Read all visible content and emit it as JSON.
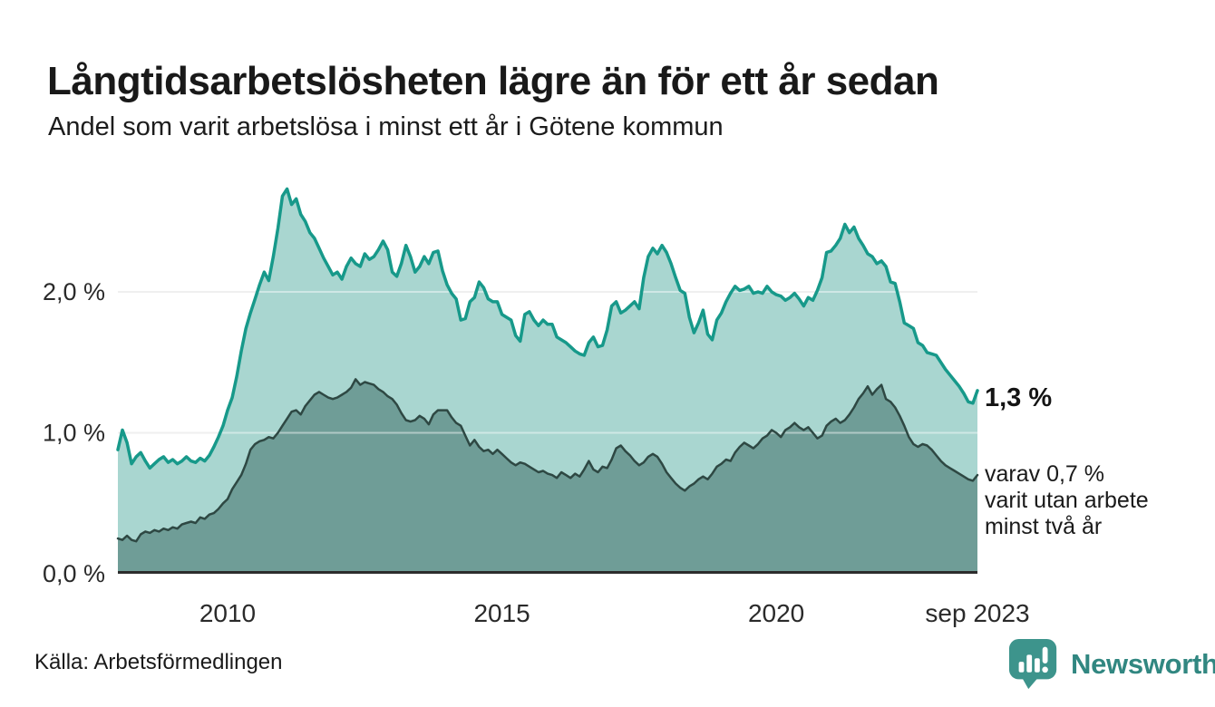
{
  "header": {
    "title": "Långtidsarbetslösheten lägre än för ett år sedan",
    "subtitle": "Andel som varit arbetslösa i minst ett år i Götene kommun"
  },
  "chart_data": {
    "type": "area",
    "title": "Långtidsarbetslösheten lägre än för ett år sedan",
    "subtitle": "Andel som varit arbetslösa i minst ett år i Götene kommun",
    "unit": "%",
    "frequency": "monthly",
    "x_start": "jan 2008",
    "x_end": "sep 2023",
    "ylim": [
      0,
      2.9
    ],
    "grid": true,
    "legend_position": "end-of-line-labels",
    "y_ticks": [
      {
        "value": 0,
        "label": "0,0 %"
      },
      {
        "value": 1,
        "label": "1,0 %"
      },
      {
        "value": 2,
        "label": "2,0 %"
      }
    ],
    "x_ticks": [
      {
        "month_index": 24,
        "label": "2010"
      },
      {
        "month_index": 84,
        "label": "2015"
      },
      {
        "month_index": 144,
        "label": "2020"
      },
      {
        "month_index": 188,
        "label": "sep 2023"
      }
    ],
    "series": [
      {
        "name": "Andel arbetslösa minst ett år",
        "line_color": "#17998a",
        "fill_color": "#a9d6d0",
        "line_width": 3.5,
        "end_value": 1.3,
        "values": [
          0.88,
          1.02,
          0.93,
          0.78,
          0.83,
          0.86,
          0.8,
          0.75,
          0.78,
          0.81,
          0.83,
          0.79,
          0.81,
          0.78,
          0.8,
          0.83,
          0.8,
          0.79,
          0.82,
          0.8,
          0.84,
          0.9,
          0.97,
          1.05,
          1.16,
          1.25,
          1.4,
          1.58,
          1.74,
          1.85,
          1.95,
          2.05,
          2.14,
          2.08,
          2.25,
          2.45,
          2.68,
          2.73,
          2.62,
          2.66,
          2.55,
          2.5,
          2.42,
          2.38,
          2.31,
          2.24,
          2.18,
          2.12,
          2.14,
          2.09,
          2.18,
          2.24,
          2.2,
          2.18,
          2.27,
          2.23,
          2.25,
          2.3,
          2.36,
          2.3,
          2.14,
          2.11,
          2.2,
          2.33,
          2.25,
          2.14,
          2.18,
          2.25,
          2.2,
          2.28,
          2.29,
          2.15,
          2.05,
          1.99,
          1.95,
          1.8,
          1.81,
          1.93,
          1.96,
          2.07,
          2.03,
          1.95,
          1.93,
          1.93,
          1.84,
          1.82,
          1.8,
          1.69,
          1.65,
          1.84,
          1.86,
          1.8,
          1.76,
          1.8,
          1.77,
          1.77,
          1.68,
          1.66,
          1.64,
          1.61,
          1.58,
          1.56,
          1.55,
          1.64,
          1.68,
          1.61,
          1.62,
          1.73,
          1.9,
          1.93,
          1.85,
          1.87,
          1.9,
          1.93,
          1.88,
          2.1,
          2.25,
          2.31,
          2.27,
          2.33,
          2.28,
          2.2,
          2.1,
          2.01,
          1.99,
          1.82,
          1.71,
          1.78,
          1.87,
          1.7,
          1.66,
          1.8,
          1.85,
          1.93,
          1.99,
          2.04,
          2.01,
          2.02,
          2.04,
          1.99,
          2.0,
          1.99,
          2.04,
          2.0,
          1.98,
          1.97,
          1.94,
          1.96,
          1.99,
          1.95,
          1.9,
          1.96,
          1.94,
          2.01,
          2.1,
          2.28,
          2.29,
          2.33,
          2.38,
          2.48,
          2.42,
          2.46,
          2.38,
          2.33,
          2.27,
          2.25,
          2.2,
          2.22,
          2.18,
          2.07,
          2.06,
          1.93,
          1.78,
          1.76,
          1.74,
          1.64,
          1.62,
          1.57,
          1.56,
          1.55,
          1.5,
          1.45,
          1.41,
          1.37,
          1.33,
          1.28,
          1.22,
          1.21,
          1.3
        ]
      },
      {
        "name": "Andel arbetslösa minst två år",
        "line_color": "#2e4843",
        "fill_color": "#6f9d97",
        "line_width": 2.5,
        "end_value": 0.7,
        "values": [
          0.25,
          0.24,
          0.27,
          0.24,
          0.23,
          0.28,
          0.3,
          0.29,
          0.31,
          0.3,
          0.32,
          0.31,
          0.33,
          0.32,
          0.35,
          0.36,
          0.37,
          0.36,
          0.4,
          0.39,
          0.42,
          0.43,
          0.46,
          0.5,
          0.53,
          0.6,
          0.65,
          0.7,
          0.78,
          0.88,
          0.92,
          0.94,
          0.95,
          0.97,
          0.96,
          1.0,
          1.05,
          1.1,
          1.15,
          1.16,
          1.13,
          1.19,
          1.23,
          1.27,
          1.29,
          1.27,
          1.25,
          1.24,
          1.25,
          1.27,
          1.29,
          1.32,
          1.38,
          1.34,
          1.36,
          1.35,
          1.34,
          1.31,
          1.29,
          1.26,
          1.24,
          1.2,
          1.14,
          1.09,
          1.08,
          1.09,
          1.12,
          1.1,
          1.06,
          1.13,
          1.16,
          1.16,
          1.16,
          1.11,
          1.07,
          1.05,
          0.98,
          0.91,
          0.95,
          0.9,
          0.87,
          0.88,
          0.85,
          0.88,
          0.85,
          0.82,
          0.79,
          0.77,
          0.79,
          0.78,
          0.76,
          0.74,
          0.72,
          0.73,
          0.71,
          0.7,
          0.68,
          0.72,
          0.7,
          0.68,
          0.71,
          0.69,
          0.74,
          0.8,
          0.74,
          0.72,
          0.76,
          0.75,
          0.81,
          0.89,
          0.91,
          0.87,
          0.84,
          0.8,
          0.77,
          0.79,
          0.83,
          0.85,
          0.83,
          0.78,
          0.72,
          0.68,
          0.64,
          0.61,
          0.59,
          0.62,
          0.64,
          0.67,
          0.69,
          0.67,
          0.71,
          0.76,
          0.78,
          0.81,
          0.8,
          0.86,
          0.9,
          0.93,
          0.91,
          0.89,
          0.92,
          0.96,
          0.98,
          1.02,
          1.0,
          0.97,
          1.02,
          1.04,
          1.07,
          1.04,
          1.02,
          1.04,
          1.0,
          0.96,
          0.98,
          1.05,
          1.08,
          1.1,
          1.07,
          1.09,
          1.13,
          1.18,
          1.24,
          1.28,
          1.33,
          1.27,
          1.31,
          1.34,
          1.24,
          1.22,
          1.18,
          1.12,
          1.05,
          0.97,
          0.92,
          0.9,
          0.92,
          0.91,
          0.88,
          0.84,
          0.8,
          0.77,
          0.75,
          0.73,
          0.71,
          0.69,
          0.67,
          0.66,
          0.7
        ]
      }
    ],
    "annotations": {
      "end_value_label": "1,3 %",
      "sub_label_lines": [
        "varav 0,7 %",
        "varit utan arbete",
        "minst två år"
      ]
    }
  },
  "footer": {
    "source": "Källa: Arbetsförmedlingen",
    "brand": "Newsworthy"
  },
  "colors": {
    "accent_teal": "#17998a",
    "light_fill": "#a9d6d0",
    "dark_fill": "#6f9d97",
    "dark_line": "#2e4843",
    "gridline": "#e3e3e3",
    "baseline": "#2c2c2c",
    "brand_teal": "#318781",
    "logo_bubble": "#3d948c"
  }
}
